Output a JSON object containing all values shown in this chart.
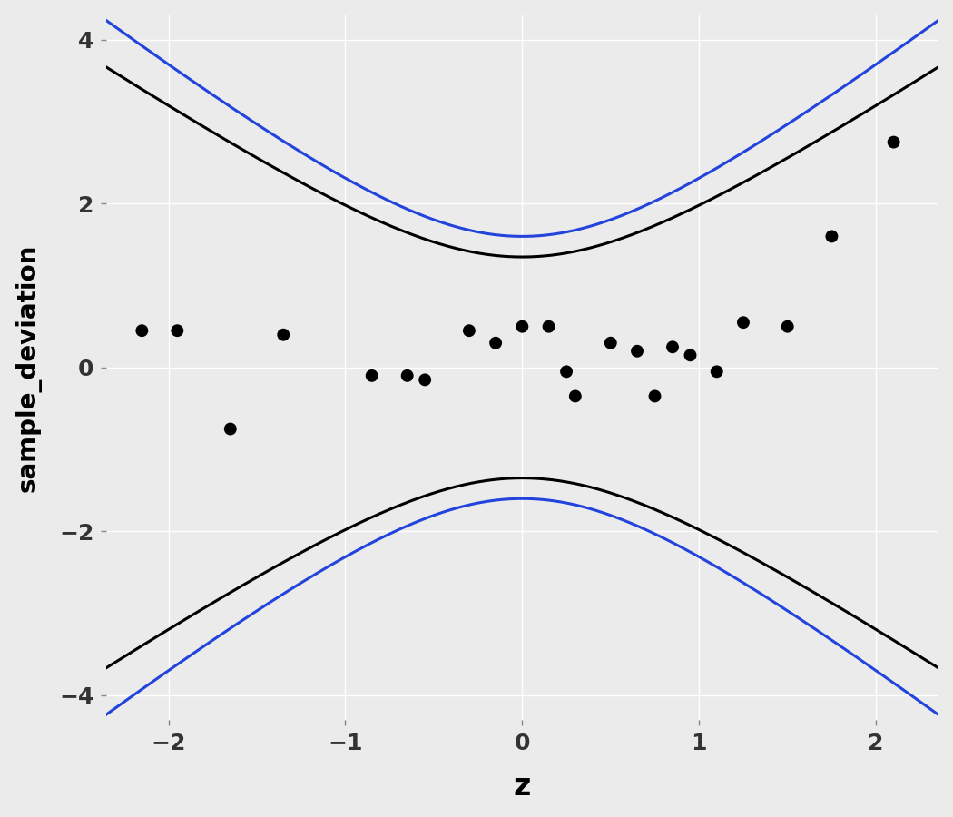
{
  "title": "",
  "xlabel": "z",
  "ylabel": "sample_deviation",
  "xlim": [
    -2.35,
    2.35
  ],
  "ylim": [
    -4.3,
    4.3
  ],
  "xticks": [
    -2,
    -1,
    0,
    1,
    2
  ],
  "yticks": [
    -4,
    -2,
    0,
    2,
    4
  ],
  "bg_color": "#EBEBEB",
  "grid_color": "#FFFFFF",
  "point_color": "#000000",
  "point_size": 100,
  "black_line_color": "#000000",
  "blue_line_color": "#2244DD",
  "points_x": [
    -2.15,
    -1.95,
    -1.65,
    -1.35,
    -0.85,
    -0.65,
    -0.55,
    -0.3,
    -0.15,
    0.0,
    0.15,
    0.25,
    0.3,
    0.5,
    0.65,
    0.75,
    0.85,
    0.95,
    1.1,
    1.25,
    1.5,
    1.75,
    2.1
  ],
  "points_y": [
    0.45,
    0.45,
    -0.75,
    0.4,
    -0.1,
    -0.1,
    -0.15,
    0.45,
    0.3,
    0.5,
    0.5,
    -0.05,
    -0.35,
    0.3,
    0.2,
    -0.35,
    0.25,
    0.15,
    -0.05,
    0.55,
    0.5,
    1.6,
    2.75
  ],
  "a_black": 1.82,
  "b_black": 2.1,
  "a_blue": 2.56,
  "b_blue": 2.78,
  "black_lw": 2.2,
  "blue_lw": 2.2
}
